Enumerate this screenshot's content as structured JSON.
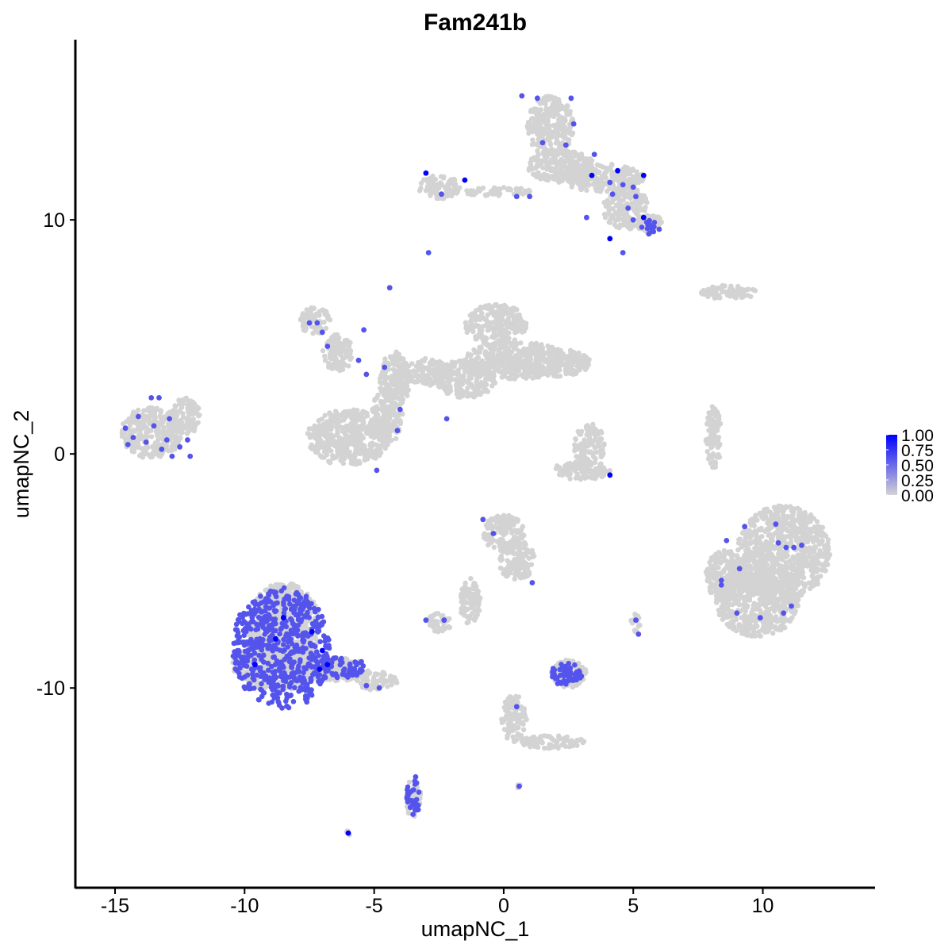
{
  "chart_data": {
    "type": "scatter",
    "title": "Fam241b",
    "xlabel": "umapNC_1",
    "ylabel": "umapNC_2",
    "xlim": [
      -16.5,
      14.3
    ],
    "ylim": [
      -18.5,
      17.7
    ],
    "x_ticks": [
      -15,
      -10,
      -5,
      0,
      5,
      10
    ],
    "x_tick_labels": [
      "-15",
      "-10",
      "-5",
      "0",
      "5",
      "10"
    ],
    "y_ticks": [
      -10,
      0,
      10
    ],
    "y_tick_labels": [
      "-10",
      "0",
      "10"
    ],
    "grid": false,
    "legend": {
      "placement": "right",
      "type": "colorbar",
      "ticks": [
        "1.00",
        "0.75",
        "0.50",
        "0.25",
        "0.00"
      ],
      "color_low": "#d3d3d3",
      "color_high": "#0000ff",
      "range": [
        0,
        1
      ]
    },
    "background_color": "#d3d3d3",
    "clusters": [
      {
        "cx": 1.8,
        "cy": 14.0,
        "rx": 0.9,
        "ry": 1.3
      },
      {
        "cx": 2.2,
        "cy": 12.3,
        "rx": 1.3,
        "ry": 0.7
      },
      {
        "cx": 3.8,
        "cy": 11.8,
        "rx": 1.6,
        "ry": 0.6
      },
      {
        "cx": 4.7,
        "cy": 10.5,
        "rx": 0.9,
        "ry": 0.9
      },
      {
        "cx": 5.6,
        "cy": 9.9,
        "rx": 0.5,
        "ry": 0.4
      },
      {
        "cx": -2.5,
        "cy": 11.4,
        "rx": 0.8,
        "ry": 0.5
      },
      {
        "cx": -0.2,
        "cy": 11.2,
        "rx": 1.3,
        "ry": 0.2
      },
      {
        "cx": 8.7,
        "cy": 6.9,
        "rx": 1.1,
        "ry": 0.3
      },
      {
        "cx": -7.3,
        "cy": 5.7,
        "rx": 0.6,
        "ry": 0.6
      },
      {
        "cx": -6.4,
        "cy": 4.3,
        "rx": 0.6,
        "ry": 0.8
      },
      {
        "cx": -4.2,
        "cy": 3.2,
        "rx": 0.6,
        "ry": 1.2
      },
      {
        "cx": -3.0,
        "cy": 3.5,
        "rx": 0.9,
        "ry": 0.6
      },
      {
        "cx": -1.5,
        "cy": 3.2,
        "rx": 1.2,
        "ry": 0.8
      },
      {
        "cx": -0.3,
        "cy": 5.5,
        "rx": 1.2,
        "ry": 0.9
      },
      {
        "cx": 0.5,
        "cy": 4.0,
        "rx": 2.0,
        "ry": 0.8
      },
      {
        "cx": 1.8,
        "cy": 3.9,
        "rx": 1.6,
        "ry": 0.6
      },
      {
        "cx": -6.0,
        "cy": 0.7,
        "rx": 1.6,
        "ry": 1.2
      },
      {
        "cx": -4.5,
        "cy": 1.6,
        "rx": 0.6,
        "ry": 1.2
      },
      {
        "cx": -13.6,
        "cy": 0.9,
        "rx": 1.2,
        "ry": 1.1
      },
      {
        "cx": -12.3,
        "cy": 1.6,
        "rx": 0.6,
        "ry": 0.8
      },
      {
        "cx": 3.3,
        "cy": 0.4,
        "rx": 0.6,
        "ry": 0.9
      },
      {
        "cx": 3.0,
        "cy": -0.7,
        "rx": 1.1,
        "ry": 0.4
      },
      {
        "cx": 8.1,
        "cy": 0.7,
        "rx": 0.3,
        "ry": 1.4
      },
      {
        "cx": 10.8,
        "cy": -4.2,
        "rx": 1.8,
        "ry": 2.0
      },
      {
        "cx": 9.8,
        "cy": -6.3,
        "rx": 1.6,
        "ry": 1.5
      },
      {
        "cx": 8.6,
        "cy": -5.2,
        "rx": 0.8,
        "ry": 1.1
      },
      {
        "cx": 0.0,
        "cy": -3.4,
        "rx": 0.8,
        "ry": 0.8
      },
      {
        "cx": 0.5,
        "cy": -4.5,
        "rx": 0.7,
        "ry": 0.9
      },
      {
        "cx": -1.3,
        "cy": -6.3,
        "rx": 0.4,
        "ry": 1.0
      },
      {
        "cx": -2.5,
        "cy": -7.2,
        "rx": 0.5,
        "ry": 0.4
      },
      {
        "cx": 0.4,
        "cy": -11.3,
        "rx": 0.5,
        "ry": 1.0
      },
      {
        "cx": 1.8,
        "cy": -12.3,
        "rx": 1.3,
        "ry": 0.3
      },
      {
        "cx": -8.5,
        "cy": -7.4,
        "rx": 1.4,
        "ry": 1.9
      },
      {
        "cx": -8.7,
        "cy": -9.0,
        "rx": 1.8,
        "ry": 1.1
      },
      {
        "cx": -6.4,
        "cy": -9.2,
        "rx": 1.2,
        "ry": 0.5
      },
      {
        "cx": -4.9,
        "cy": -9.7,
        "rx": 0.8,
        "ry": 0.4
      },
      {
        "cx": -3.5,
        "cy": -14.7,
        "rx": 0.3,
        "ry": 0.8
      },
      {
        "cx": 2.5,
        "cy": -9.4,
        "rx": 0.7,
        "ry": 0.6
      },
      {
        "cx": 5.1,
        "cy": -7.2,
        "rx": 0.2,
        "ry": 0.4
      },
      {
        "cx": 0.6,
        "cy": -14.2,
        "rx": 0.1,
        "ry": 0.1
      },
      {
        "cx": -6.0,
        "cy": -16.2,
        "rx": 0.1,
        "ry": 0.1
      }
    ],
    "expressing_points": [
      {
        "x": 0.7,
        "y": 15.3,
        "v": 0.6
      },
      {
        "x": 1.3,
        "y": 15.2,
        "v": 0.6
      },
      {
        "x": 2.6,
        "y": 15.2,
        "v": 0.6
      },
      {
        "x": 2.7,
        "y": 14.1,
        "v": 0.6
      },
      {
        "x": 1.5,
        "y": 13.3,
        "v": 0.6
      },
      {
        "x": 2.4,
        "y": 13.2,
        "v": 0.6
      },
      {
        "x": 3.5,
        "y": 12.8,
        "v": 0.6
      },
      {
        "x": 3.4,
        "y": 11.9,
        "v": 1.0
      },
      {
        "x": 4.4,
        "y": 12.1,
        "v": 1.0
      },
      {
        "x": 5.4,
        "y": 11.9,
        "v": 1.0
      },
      {
        "x": 4.1,
        "y": 11.6,
        "v": 0.6
      },
      {
        "x": 4.6,
        "y": 11.5,
        "v": 0.6
      },
      {
        "x": 5.0,
        "y": 11.4,
        "v": 0.6
      },
      {
        "x": 4.2,
        "y": 11.1,
        "v": 0.6
      },
      {
        "x": 5.1,
        "y": 11.0,
        "v": 0.6
      },
      {
        "x": 4.8,
        "y": 10.5,
        "v": 0.6
      },
      {
        "x": 3.2,
        "y": 10.1,
        "v": 0.6
      },
      {
        "x": 5.4,
        "y": 10.1,
        "v": 1.0
      },
      {
        "x": 5.0,
        "y": 10.0,
        "v": 0.6
      },
      {
        "x": 5.8,
        "y": 9.7,
        "v": 0.6
      },
      {
        "x": 6.0,
        "y": 9.6,
        "v": 0.6
      },
      {
        "x": 5.6,
        "y": 9.4,
        "v": 0.6
      },
      {
        "x": 4.1,
        "y": 9.2,
        "v": 1.0
      },
      {
        "x": 4.6,
        "y": 8.6,
        "v": 0.6
      },
      {
        "x": -3.0,
        "y": 12.0,
        "v": 1.0
      },
      {
        "x": -1.5,
        "y": 11.7,
        "v": 1.0
      },
      {
        "x": -2.4,
        "y": 11.1,
        "v": 0.6
      },
      {
        "x": 0.5,
        "y": 11.0,
        "v": 0.6
      },
      {
        "x": 1.0,
        "y": 11.0,
        "v": 0.6
      },
      {
        "x": -2.9,
        "y": 8.6,
        "v": 0.6
      },
      {
        "x": -4.4,
        "y": 7.1,
        "v": 0.6
      },
      {
        "x": -7.5,
        "y": 5.6,
        "v": 0.6
      },
      {
        "x": -7.2,
        "y": 5.6,
        "v": 0.6
      },
      {
        "x": -7.0,
        "y": 5.2,
        "v": 0.6
      },
      {
        "x": -5.4,
        "y": 5.3,
        "v": 0.6
      },
      {
        "x": -6.8,
        "y": 4.6,
        "v": 0.6
      },
      {
        "x": -5.6,
        "y": 4.0,
        "v": 0.6
      },
      {
        "x": -4.6,
        "y": 3.7,
        "v": 0.6
      },
      {
        "x": -5.3,
        "y": 3.4,
        "v": 0.6
      },
      {
        "x": -4.0,
        "y": 1.9,
        "v": 0.6
      },
      {
        "x": -4.1,
        "y": 1.0,
        "v": 0.6
      },
      {
        "x": -2.2,
        "y": 1.5,
        "v": 0.6
      },
      {
        "x": -4.9,
        "y": -0.7,
        "v": 0.6
      },
      {
        "x": -13.6,
        "y": 2.4,
        "v": 0.6
      },
      {
        "x": -13.3,
        "y": 2.4,
        "v": 0.6
      },
      {
        "x": -14.1,
        "y": 1.6,
        "v": 0.6
      },
      {
        "x": -12.9,
        "y": 1.5,
        "v": 0.6
      },
      {
        "x": -13.5,
        "y": 1.2,
        "v": 0.6
      },
      {
        "x": -14.6,
        "y": 1.1,
        "v": 0.6
      },
      {
        "x": -14.3,
        "y": 0.7,
        "v": 0.6
      },
      {
        "x": -13.0,
        "y": 0.6,
        "v": 0.6
      },
      {
        "x": -12.2,
        "y": 0.6,
        "v": 0.6
      },
      {
        "x": -13.8,
        "y": 0.5,
        "v": 0.6
      },
      {
        "x": -14.5,
        "y": 0.4,
        "v": 0.6
      },
      {
        "x": -12.5,
        "y": 0.3,
        "v": 0.6
      },
      {
        "x": -13.2,
        "y": 0.2,
        "v": 0.6
      },
      {
        "x": -12.8,
        "y": -0.1,
        "v": 0.6
      },
      {
        "x": -12.1,
        "y": -0.1,
        "v": 0.6
      },
      {
        "x": 4.1,
        "y": -0.9,
        "v": 1.0
      },
      {
        "x": 9.3,
        "y": -3.1,
        "v": 0.6
      },
      {
        "x": 10.5,
        "y": -3.0,
        "v": 0.6
      },
      {
        "x": 8.6,
        "y": -3.7,
        "v": 0.6
      },
      {
        "x": 10.6,
        "y": -3.8,
        "v": 0.6
      },
      {
        "x": 10.9,
        "y": -4.0,
        "v": 0.6
      },
      {
        "x": 11.2,
        "y": -4.0,
        "v": 0.6
      },
      {
        "x": 11.5,
        "y": -3.9,
        "v": 0.6
      },
      {
        "x": 9.1,
        "y": -4.9,
        "v": 0.6
      },
      {
        "x": 8.4,
        "y": -5.4,
        "v": 0.6
      },
      {
        "x": 8.4,
        "y": -5.6,
        "v": 0.6
      },
      {
        "x": 11.1,
        "y": -6.5,
        "v": 0.6
      },
      {
        "x": 9.0,
        "y": -6.8,
        "v": 0.6
      },
      {
        "x": 9.9,
        "y": -7.0,
        "v": 0.6
      },
      {
        "x": 10.8,
        "y": -6.8,
        "v": 0.6
      },
      {
        "x": -0.8,
        "y": -2.8,
        "v": 0.6
      },
      {
        "x": -0.4,
        "y": -3.4,
        "v": 0.6
      },
      {
        "x": 1.1,
        "y": -5.5,
        "v": 0.6
      },
      {
        "x": -2.3,
        "y": -7.1,
        "v": 0.6
      },
      {
        "x": 5.1,
        "y": -7.1,
        "v": 0.6
      },
      {
        "x": 5.2,
        "y": -7.7,
        "v": 0.6
      },
      {
        "x": -3.0,
        "y": -7.1,
        "v": 0.6
      },
      {
        "x": -8.5,
        "y": -7.0,
        "v": 1.0
      },
      {
        "x": -7.4,
        "y": -7.6,
        "v": 1.0
      },
      {
        "x": -8.8,
        "y": -7.9,
        "v": 1.0
      },
      {
        "x": -7.0,
        "y": -8.4,
        "v": 1.0
      },
      {
        "x": -9.6,
        "y": -9.0,
        "v": 1.0
      },
      {
        "x": -6.8,
        "y": -9.0,
        "v": 1.0
      },
      {
        "x": -7.1,
        "y": -9.2,
        "v": 1.0
      },
      {
        "x": -7.7,
        "y": -6.5,
        "v": 0.6
      },
      {
        "x": -8.3,
        "y": -6.1,
        "v": 0.6
      },
      {
        "x": -7.6,
        "y": -10.6,
        "v": 0.6
      },
      {
        "x": -5.3,
        "y": -9.9,
        "v": 0.6
      },
      {
        "x": -4.8,
        "y": -10.0,
        "v": 0.6
      },
      {
        "x": -3.4,
        "y": -13.8,
        "v": 0.6
      },
      {
        "x": -3.6,
        "y": -15.1,
        "v": 0.6
      },
      {
        "x": -3.3,
        "y": -15.2,
        "v": 0.6
      },
      {
        "x": -3.5,
        "y": -15.4,
        "v": 0.6
      },
      {
        "x": 0.5,
        "y": -10.8,
        "v": 0.6
      },
      {
        "x": 2.0,
        "y": -9.6,
        "v": 0.6
      },
      {
        "x": 3.0,
        "y": -9.5,
        "v": 0.6
      },
      {
        "x": 0.6,
        "y": -14.2,
        "v": 0.6
      },
      {
        "x": -6.0,
        "y": -16.2,
        "v": 1.0
      }
    ],
    "dense_regions": [
      {
        "cx": -8.6,
        "cy": -8.3,
        "rx": 1.9,
        "ry": 2.6,
        "n": 560,
        "v": 0.6
      },
      {
        "cx": -6.5,
        "cy": -9.1,
        "rx": 1.2,
        "ry": 0.5,
        "n": 70,
        "v": 0.6
      },
      {
        "cx": 2.4,
        "cy": -9.4,
        "rx": 0.6,
        "ry": 0.5,
        "n": 55,
        "v": 0.6
      },
      {
        "cx": -3.5,
        "cy": -14.6,
        "rx": 0.25,
        "ry": 0.8,
        "n": 30,
        "v": 0.6
      },
      {
        "cx": 5.7,
        "cy": 9.7,
        "rx": 0.4,
        "ry": 0.3,
        "n": 12,
        "v": 0.6
      }
    ]
  }
}
